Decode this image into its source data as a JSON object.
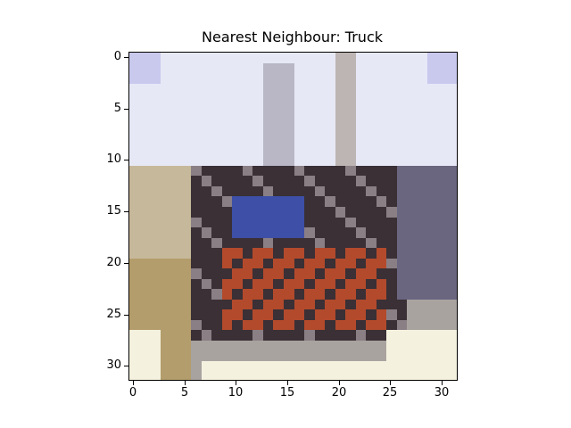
{
  "title": "Nearest Neighbour: Truck",
  "axes": {
    "y_ticks": [
      "0",
      "5",
      "10",
      "15",
      "20",
      "25",
      "30"
    ],
    "x_ticks": [
      "0",
      "5",
      "10",
      "15",
      "20",
      "25",
      "30"
    ],
    "extent": [
      0,
      31
    ]
  },
  "image": {
    "description_colors": {
      "sky": "#e7e8f6",
      "sky_blue": "#c9c9ee",
      "ground": "#f4f1df",
      "truck_red": "#b34a2c",
      "truck_blue": "#3d4fa6",
      "dark": "#3a3035",
      "gravel": "#c6b89a",
      "mountain": "#6a6680"
    }
  }
}
